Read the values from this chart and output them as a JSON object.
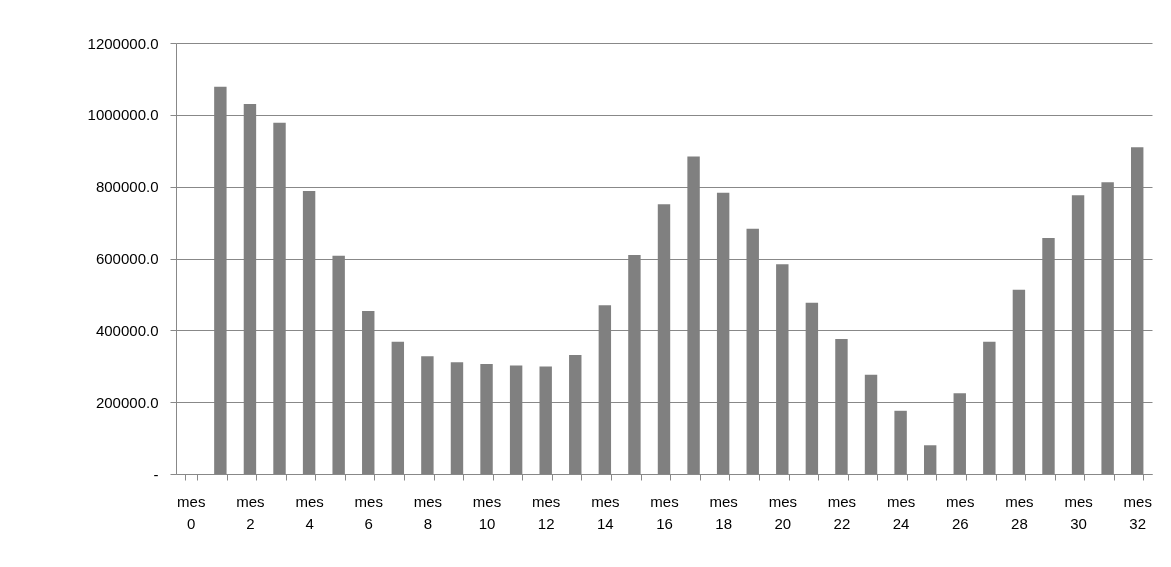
{
  "chart_data": {
    "type": "bar",
    "categories": [
      "mes 0",
      null,
      "mes 2",
      null,
      "mes 4",
      null,
      "mes 6",
      null,
      "mes 8",
      null,
      "mes 10",
      null,
      "mes 12",
      null,
      "mes 14",
      null,
      "mes 16",
      null,
      "mes 18",
      null,
      "mes 20",
      null,
      "mes 22",
      null,
      "mes 24",
      null,
      "mes 26",
      null,
      "mes 28",
      null,
      "mes 30",
      null,
      "mes 32"
    ],
    "values": [
      null,
      1078000,
      1030000,
      978000,
      788000,
      608000,
      454000,
      368000,
      328000,
      311000,
      306000,
      302000,
      299000,
      331000,
      470000,
      610000,
      751000,
      884000,
      783000,
      683000,
      584000,
      477000,
      376000,
      276000,
      176000,
      80000,
      225000,
      368000,
      513000,
      657000,
      776000,
      812000,
      910000
    ],
    "color": "#808080",
    "ylim": [
      0,
      1200000
    ],
    "yticks": [
      {
        "value": 0,
        "label": "-"
      },
      {
        "value": 200000,
        "label": "200000.0"
      },
      {
        "value": 400000,
        "label": "400000.0"
      },
      {
        "value": 600000,
        "label": "600000.0"
      },
      {
        "value": 800000,
        "label": "800000.0"
      },
      {
        "value": 1000000,
        "label": "1000000.0"
      },
      {
        "value": 1200000,
        "label": "1200000.0"
      }
    ],
    "grid": "y"
  }
}
